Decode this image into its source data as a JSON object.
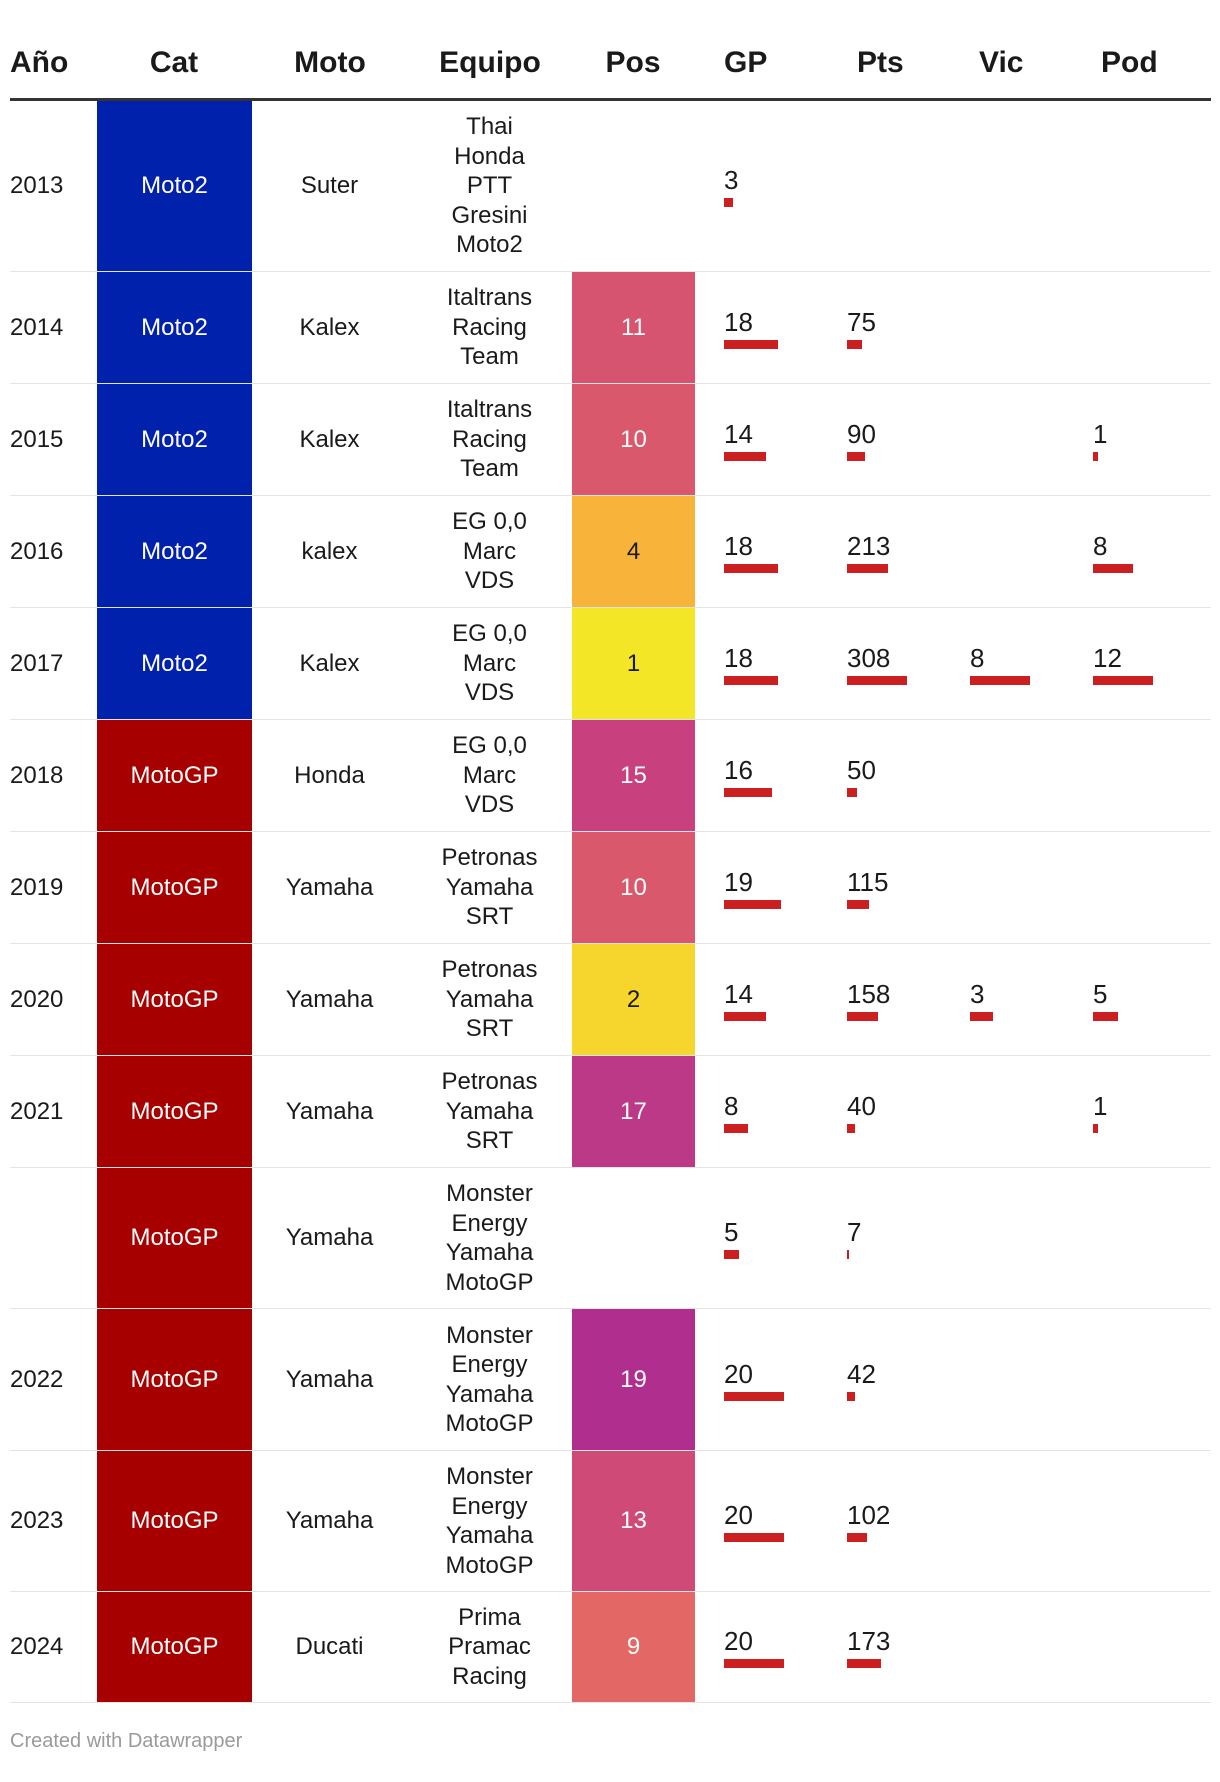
{
  "chart_data": {
    "type": "table",
    "columns": [
      "Año",
      "Cat",
      "Moto",
      "Equipo",
      "Pos",
      "GP",
      "Pts",
      "Vic",
      "Pod"
    ],
    "bar_max": {
      "gp": 20,
      "pts": 308,
      "vic": 8,
      "pod": 12
    },
    "rows": [
      {
        "year": "2013",
        "cat": "Moto2",
        "moto": "Suter",
        "team": "Thai\nHonda\nPTT\nGresini\nMoto2",
        "pos": "",
        "pos_color": "",
        "pos_text_color": "",
        "gp": "3",
        "pts": "",
        "vic": "",
        "pod": ""
      },
      {
        "year": "2014",
        "cat": "Moto2",
        "moto": "Kalex",
        "team": "Italtrans\nRacing\nTeam",
        "pos": "11",
        "pos_color": "#d6546f",
        "pos_text_color": "#ffffff",
        "gp": "18",
        "pts": "75",
        "vic": "",
        "pod": ""
      },
      {
        "year": "2015",
        "cat": "Moto2",
        "moto": "Kalex",
        "team": "Italtrans\nRacing\nTeam",
        "pos": "10",
        "pos_color": "#d9586b",
        "pos_text_color": "#ffffff",
        "gp": "14",
        "pts": "90",
        "vic": "",
        "pod": "1"
      },
      {
        "year": "2016",
        "cat": "Moto2",
        "moto": "kalex",
        "team": "EG 0,0\nMarc\nVDS",
        "pos": "4",
        "pos_color": "#f8b33a",
        "pos_text_color": "#1a1a1a",
        "gp": "18",
        "pts": "213",
        "vic": "",
        "pod": "8"
      },
      {
        "year": "2017",
        "cat": "Moto2",
        "moto": "Kalex",
        "team": "EG 0,0\nMarc\nVDS",
        "pos": "1",
        "pos_color": "#f2e626",
        "pos_text_color": "#1a1a1a",
        "gp": "18",
        "pts": "308",
        "vic": "8",
        "pod": "12"
      },
      {
        "year": "2018",
        "cat": "MotoGP",
        "moto": "Honda",
        "team": "EG 0,0\nMarc\nVDS",
        "pos": "15",
        "pos_color": "#c8407d",
        "pos_text_color": "#ffffff",
        "gp": "16",
        "pts": "50",
        "vic": "",
        "pod": ""
      },
      {
        "year": "2019",
        "cat": "MotoGP",
        "moto": "Yamaha",
        "team": "Petronas\nYamaha\nSRT",
        "pos": "10",
        "pos_color": "#d9586b",
        "pos_text_color": "#ffffff",
        "gp": "19",
        "pts": "115",
        "vic": "",
        "pod": ""
      },
      {
        "year": "2020",
        "cat": "MotoGP",
        "moto": "Yamaha",
        "team": "Petronas\nYamaha\nSRT",
        "pos": "2",
        "pos_color": "#f6d52c",
        "pos_text_color": "#1a1a1a",
        "gp": "14",
        "pts": "158",
        "vic": "3",
        "pod": "5"
      },
      {
        "year": "2021",
        "cat": "MotoGP",
        "moto": "Yamaha",
        "team": "Petronas\nYamaha\nSRT",
        "pos": "17",
        "pos_color": "#bc3987",
        "pos_text_color": "#ffffff",
        "gp": "8",
        "pts": "40",
        "vic": "",
        "pod": "1"
      },
      {
        "year": "",
        "cat": "MotoGP",
        "moto": "Yamaha",
        "team": "Monster\nEnergy\nYamaha\nMotoGP",
        "pos": "",
        "pos_color": "",
        "pos_text_color": "",
        "gp": "5",
        "pts": "7",
        "vic": "",
        "pod": ""
      },
      {
        "year": "2022",
        "cat": "MotoGP",
        "moto": "Yamaha",
        "team": "Monster\nEnergy\nYamaha\nMotoGP",
        "pos": "19",
        "pos_color": "#b02f8e",
        "pos_text_color": "#ffffff",
        "gp": "20",
        "pts": "42",
        "vic": "",
        "pod": ""
      },
      {
        "year": "2023",
        "cat": "MotoGP",
        "moto": "Yamaha",
        "team": "Monster\nEnergy\nYamaha\nMotoGP",
        "pos": "13",
        "pos_color": "#cf4a76",
        "pos_text_color": "#ffffff",
        "gp": "20",
        "pts": "102",
        "vic": "",
        "pod": ""
      },
      {
        "year": "2024",
        "cat": "MotoGP",
        "moto": "Ducati",
        "team": "Prima\nPramac\nRacing",
        "pos": "9",
        "pos_color": "#e36764",
        "pos_text_color": "#ffffff",
        "gp": "20",
        "pts": "173",
        "vic": "",
        "pod": ""
      }
    ]
  },
  "category_colors": {
    "Moto2": "#0021ab",
    "MotoGP": "#a60000"
  },
  "bar_color": "#cc1f1f",
  "footer": "Created with Datawrapper"
}
